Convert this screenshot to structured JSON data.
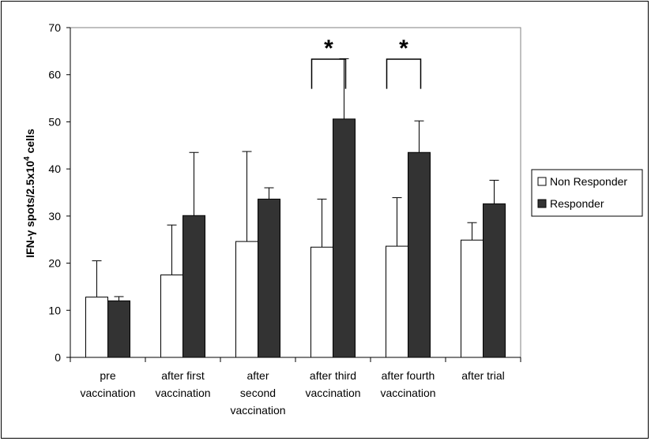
{
  "chart_data": {
    "type": "bar",
    "title": "",
    "xlabel": "",
    "ylabel": "IFN-γ spots/2.5x10⁴ cells",
    "ylabel_parts": {
      "pre": "IFN-",
      "gamma": "γ",
      "mid": " spots/2.5x10",
      "sup": "4",
      "post": " cells"
    },
    "ylim": [
      0,
      70
    ],
    "yticks": [
      0,
      10,
      20,
      30,
      40,
      50,
      60,
      70
    ],
    "grid": false,
    "legend_position": "right",
    "categories": [
      [
        "pre",
        "vaccination"
      ],
      [
        "after first",
        "vaccination"
      ],
      [
        "after",
        "second",
        "vaccination"
      ],
      [
        "after third",
        "vaccination"
      ],
      [
        "after fourth",
        "vaccination"
      ],
      [
        "after trial"
      ]
    ],
    "series": [
      {
        "name": "Non Responder",
        "color": "#ffffff",
        "values": [
          12.8,
          17.5,
          24.6,
          23.4,
          23.6,
          24.9
        ],
        "errors": [
          7.7,
          10.6,
          19.1,
          10.2,
          10.3,
          3.7
        ]
      },
      {
        "name": "Responder",
        "color": "#333333",
        "values": [
          12.0,
          30.1,
          33.6,
          50.6,
          43.5,
          32.6
        ],
        "errors": [
          0.9,
          13.4,
          2.4,
          12.8,
          6.7,
          5.0
        ]
      }
    ],
    "significance": [
      {
        "category_index": 3,
        "label": "*"
      },
      {
        "category_index": 4,
        "label": "*"
      }
    ]
  }
}
